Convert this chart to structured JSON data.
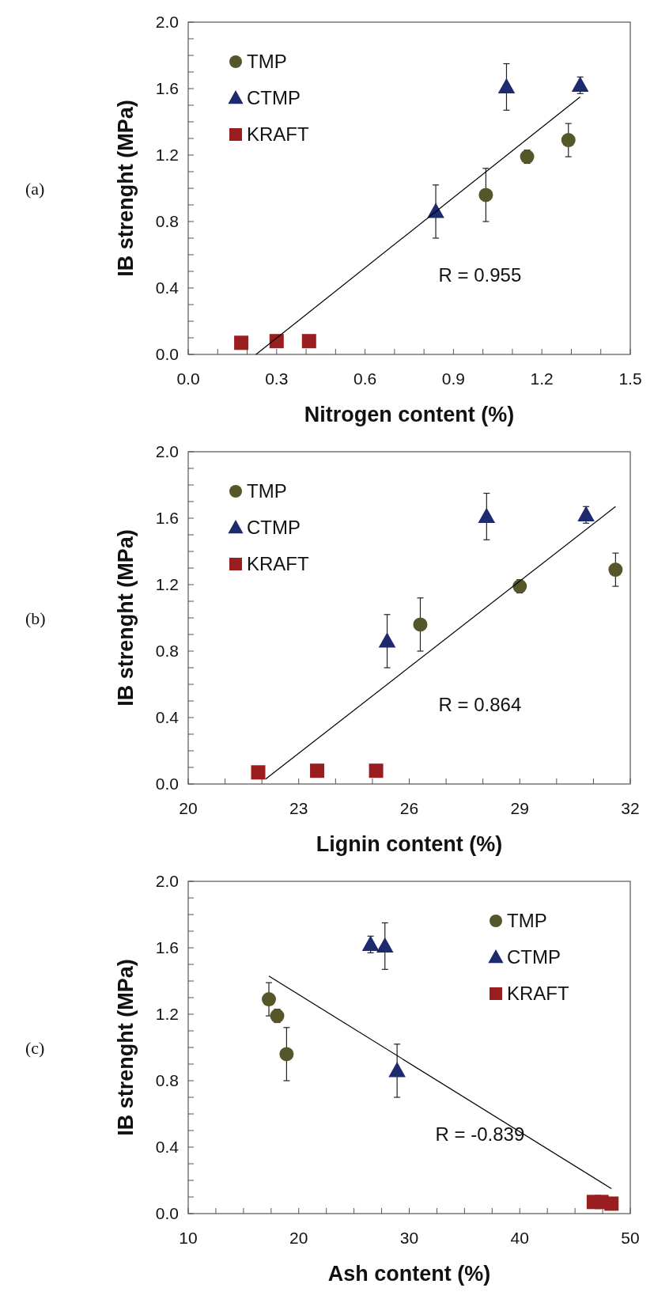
{
  "chart_data": [
    {
      "type": "scatter",
      "xlabel": "Nitrogen content (%)",
      "ylabel": "IB strenght (MPa)",
      "legend": "top left",
      "xlim": [
        0,
        1.5
      ],
      "ylim": [
        0,
        2
      ],
      "xticks": [
        {
          "value": 0,
          "label": "0.0"
        },
        {
          "value": 0.1,
          "label": null
        },
        {
          "value": 0.2,
          "label": null
        },
        0.3,
        {
          "value": 0.4,
          "label": null
        },
        {
          "value": 0.5,
          "label": null
        },
        0.6,
        {
          "value": 0.7,
          "label": null
        },
        {
          "value": 0.8,
          "label": null
        },
        0.9,
        {
          "value": 1.0,
          "label": null
        },
        {
          "value": 1.1,
          "label": null
        },
        1.2,
        {
          "value": 1.3,
          "label": null
        },
        {
          "value": 1.4,
          "label": null
        },
        1.5
      ],
      "yticks": [
        {
          "value": 0,
          "label": "0.0"
        },
        {
          "value": 0.1,
          "label": null
        },
        {
          "value": 0.2,
          "label": null
        },
        {
          "value": 0.3,
          "label": null
        },
        0.4,
        {
          "value": 0.5,
          "label": null
        },
        {
          "value": 0.6,
          "label": null
        },
        {
          "value": 0.7,
          "label": null
        },
        0.8,
        {
          "value": 0.9,
          "label": null
        },
        {
          "value": 1.0,
          "label": null
        },
        {
          "value": 1.1,
          "label": null
        },
        1.2,
        {
          "value": 1.3,
          "label": null
        },
        {
          "value": 1.4,
          "label": null
        },
        {
          "value": 1.5,
          "label": null
        },
        1.6,
        {
          "value": 1.7,
          "label": null
        },
        {
          "value": 1.8,
          "label": null
        },
        {
          "value": 1.9,
          "label": null
        },
        {
          "value": 2,
          "label": "2.0"
        }
      ],
      "series": [
        {
          "name": "TMP",
          "color": "#55562a",
          "marker": "circle",
          "x": [
            1.01,
            1.15,
            1.29
          ],
          "values": [
            0.96,
            1.19,
            1.29
          ],
          "errors": [
            0.16,
            0.04,
            0.1
          ]
        },
        {
          "name": "CTMP",
          "color": "#1e2a6e",
          "marker": "triangle",
          "x": [
            0.84,
            1.08,
            1.33
          ],
          "values": [
            0.86,
            1.61,
            1.62
          ],
          "errors": [
            0.16,
            0.14,
            0.05
          ]
        },
        {
          "name": "KRAFT",
          "color": "#9a1d1f",
          "marker": "square",
          "x": [
            0.18,
            0.3,
            0.41
          ],
          "values": [
            0.07,
            0.08,
            0.08
          ]
        },
        {
          "type": "line",
          "color": "#000000",
          "x": [
            0.23,
            1.33
          ],
          "values": [
            0,
            1.55
          ]
        }
      ],
      "annotations": [
        "(a)",
        "R = 0.955"
      ]
    },
    {
      "type": "scatter",
      "xlabel": "Lignin content (%)",
      "ylabel": "IB strenght (MPa)",
      "legend": "top left",
      "xlim": [
        20,
        32
      ],
      "ylim": [
        0,
        2
      ],
      "xticks": [
        20,
        {
          "value": 21,
          "label": null
        },
        {
          "value": 22,
          "label": null
        },
        23,
        {
          "value": 24,
          "label": null
        },
        {
          "value": 25,
          "label": null
        },
        26,
        {
          "value": 27,
          "label": null
        },
        {
          "value": 28,
          "label": null
        },
        29,
        {
          "value": 30,
          "label": null
        },
        {
          "value": 31,
          "label": null
        },
        32
      ],
      "yticks": [
        {
          "value": 0,
          "label": "0.0"
        },
        {
          "value": 0.1,
          "label": null
        },
        {
          "value": 0.2,
          "label": null
        },
        {
          "value": 0.3,
          "label": null
        },
        0.4,
        {
          "value": 0.5,
          "label": null
        },
        {
          "value": 0.6,
          "label": null
        },
        {
          "value": 0.7,
          "label": null
        },
        0.8,
        {
          "value": 0.9,
          "label": null
        },
        {
          "value": 1.0,
          "label": null
        },
        {
          "value": 1.1,
          "label": null
        },
        1.2,
        {
          "value": 1.3,
          "label": null
        },
        {
          "value": 1.4,
          "label": null
        },
        {
          "value": 1.5,
          "label": null
        },
        1.6,
        {
          "value": 1.7,
          "label": null
        },
        {
          "value": 1.8,
          "label": null
        },
        {
          "value": 1.9,
          "label": null
        },
        {
          "value": 2,
          "label": "2.0"
        }
      ],
      "series": [
        {
          "name": "TMP",
          "color": "#55562a",
          "marker": "circle",
          "x": [
            26.3,
            29.0,
            31.6
          ],
          "values": [
            0.96,
            1.19,
            1.29
          ],
          "errors": [
            0.16,
            0.04,
            0.1
          ]
        },
        {
          "name": "CTMP",
          "color": "#1e2a6e",
          "marker": "triangle",
          "x": [
            25.4,
            28.1,
            30.8
          ],
          "values": [
            0.86,
            1.61,
            1.62
          ],
          "errors": [
            0.16,
            0.14,
            0.05
          ]
        },
        {
          "name": "KRAFT",
          "color": "#9a1d1f",
          "marker": "square",
          "x": [
            21.9,
            23.5,
            25.1
          ],
          "values": [
            0.07,
            0.08,
            0.08
          ]
        },
        {
          "type": "line",
          "color": "#000000",
          "x": [
            22.1,
            31.6
          ],
          "values": [
            0.03,
            1.67
          ]
        }
      ],
      "annotations": [
        "(b)",
        "R = 0.864"
      ]
    },
    {
      "type": "scatter",
      "xlabel": "Ash content (%)",
      "ylabel": "IB strenght (MPa)",
      "legend": "top right",
      "xlim": [
        10,
        50
      ],
      "ylim": [
        0,
        2
      ],
      "xticks": [
        10,
        {
          "value": 12.5,
          "label": null
        },
        {
          "value": 15,
          "label": null
        },
        {
          "value": 17.5,
          "label": null
        },
        20,
        {
          "value": 22.5,
          "label": null
        },
        {
          "value": 25,
          "label": null
        },
        {
          "value": 27.5,
          "label": null
        },
        30,
        {
          "value": 32.5,
          "label": null
        },
        {
          "value": 35,
          "label": null
        },
        {
          "value": 37.5,
          "label": null
        },
        40,
        {
          "value": 42.5,
          "label": null
        },
        {
          "value": 45,
          "label": null
        },
        {
          "value": 47.5,
          "label": null
        },
        50
      ],
      "yticks": [
        {
          "value": 0,
          "label": "0.0"
        },
        {
          "value": 0.1,
          "label": null
        },
        {
          "value": 0.2,
          "label": null
        },
        {
          "value": 0.3,
          "label": null
        },
        0.4,
        {
          "value": 0.5,
          "label": null
        },
        {
          "value": 0.6,
          "label": null
        },
        {
          "value": 0.7,
          "label": null
        },
        0.8,
        {
          "value": 0.9,
          "label": null
        },
        {
          "value": 1.0,
          "label": null
        },
        {
          "value": 1.1,
          "label": null
        },
        1.2,
        {
          "value": 1.3,
          "label": null
        },
        {
          "value": 1.4,
          "label": null
        },
        {
          "value": 1.5,
          "label": null
        },
        1.6,
        {
          "value": 1.7,
          "label": null
        },
        {
          "value": 1.8,
          "label": null
        },
        {
          "value": 1.9,
          "label": null
        },
        {
          "value": 2,
          "label": "2.0"
        }
      ],
      "series": [
        {
          "name": "TMP",
          "color": "#55562a",
          "marker": "circle",
          "x": [
            17.3,
            18.05,
            18.9
          ],
          "values": [
            1.29,
            1.19,
            0.96
          ],
          "errors": [
            0.1,
            0.04,
            0.16
          ]
        },
        {
          "name": "CTMP",
          "color": "#1e2a6e",
          "marker": "triangle",
          "x": [
            26.5,
            27.8,
            28.9
          ],
          "values": [
            1.62,
            1.61,
            0.86
          ],
          "errors": [
            0.05,
            0.14,
            0.16
          ]
        },
        {
          "name": "KRAFT",
          "color": "#9a1d1f",
          "marker": "square",
          "x": [
            46.7,
            47.4,
            48.3
          ],
          "values": [
            0.07,
            0.07,
            0.06
          ]
        },
        {
          "type": "line",
          "color": "#000000",
          "x": [
            17.3,
            48.3
          ],
          "values": [
            1.43,
            0.15
          ]
        }
      ],
      "annotations": [
        "(c)",
        "R = -0.839"
      ]
    }
  ]
}
